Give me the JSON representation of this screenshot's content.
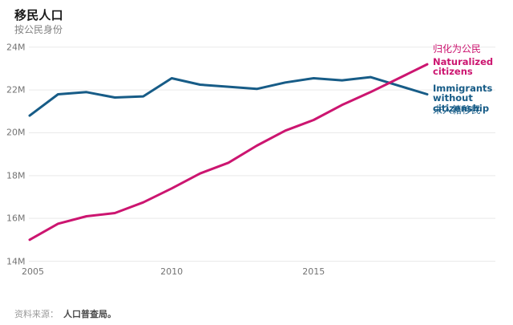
{
  "header": {
    "title": "移民人口",
    "subtitle": "按公民身份"
  },
  "colors": {
    "naturalized_pink": "#cc1570",
    "noncitizen_blue": "#175c87",
    "grid": "#e9e9e9",
    "tick_text": "#737373"
  },
  "chart_data": {
    "type": "line",
    "title": "移民人口",
    "subtitle": "按公民身份",
    "x": [
      2005,
      2006,
      2007,
      2008,
      2009,
      2010,
      2011,
      2012,
      2013,
      2014,
      2015,
      2016,
      2017,
      2018,
      2019
    ],
    "series": [
      {
        "name": "Immigrants without citizenship",
        "name_zh": "未入籍移民",
        "color": "#175c87",
        "values": [
          20.8,
          21.8,
          21.9,
          21.65,
          21.7,
          22.55,
          22.25,
          22.15,
          22.05,
          22.35,
          22.55,
          22.45,
          22.6,
          22.2,
          21.8
        ]
      },
      {
        "name": "Naturalized citizens",
        "name_zh": "归化为公民",
        "color": "#cc1570",
        "values": [
          15.0,
          15.75,
          16.1,
          16.25,
          16.75,
          17.4,
          18.1,
          18.6,
          19.4,
          20.1,
          20.6,
          21.3,
          21.9,
          22.55,
          23.2
        ]
      }
    ],
    "ylim": [
      14,
      24
    ],
    "ytick_values": [
      14,
      16,
      18,
      20,
      22,
      24
    ],
    "ytick_labels": [
      "14M",
      "16M",
      "18M",
      "20M",
      "22M",
      "24M"
    ],
    "xtick_values": [
      2005,
      2010,
      2015
    ],
    "xtick_labels": [
      "2005",
      "2010",
      "2015"
    ],
    "grid": "horizontal",
    "legend_position": "right",
    "unit": "M"
  },
  "legend": {
    "naturalized_zh": "归化为公民",
    "naturalized_en": "Naturalized citizens",
    "noncitizen_en": "Immigrants without citizenship",
    "noncitizen_zh": "未入籍移民"
  },
  "source": {
    "label": "资料来源：",
    "value": "人口普查局。"
  }
}
